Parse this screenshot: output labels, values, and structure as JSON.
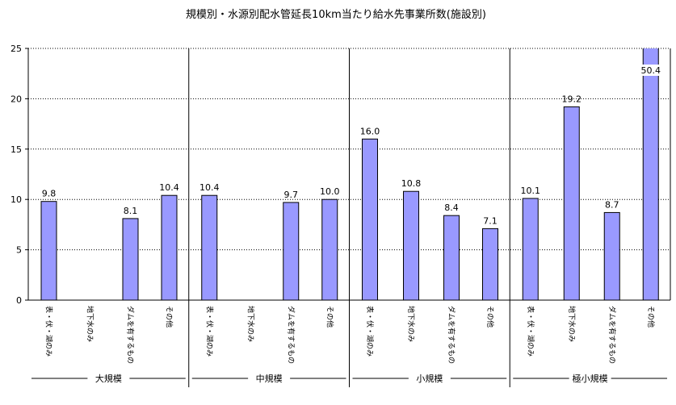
{
  "chart_data": {
    "type": "bar",
    "title": "規模別・水源別配水管延長10km当たり給水先事業所数(施設別)",
    "xlabel": "",
    "ylabel": "",
    "ylim": [
      0,
      25
    ],
    "yticks": [
      0,
      5,
      10,
      15,
      20,
      25
    ],
    "grid": true,
    "legend": "none",
    "colors": {
      "bar_fill": "#9999ff",
      "bar_stroke": "#000000",
      "grid": "#000000"
    },
    "groups": [
      {
        "label": "大規模",
        "categories": [
          "表・伏・湖のみ",
          "地下水のみ",
          "ダムを有するもの",
          "その他"
        ],
        "values": [
          9.8,
          null,
          8.1,
          10.4
        ],
        "value_labels": [
          "9.8",
          "",
          "8.1",
          "10.4"
        ]
      },
      {
        "label": "中規模",
        "categories": [
          "表・伏・湖のみ",
          "地下水のみ",
          "ダムを有するもの",
          "その他"
        ],
        "values": [
          10.4,
          null,
          9.7,
          10.0
        ],
        "value_labels": [
          "10.4",
          "",
          "9.7",
          "10.0"
        ]
      },
      {
        "label": "小規模",
        "categories": [
          "表・伏・湖のみ",
          "地下水のみ",
          "ダムを有するもの",
          "その他"
        ],
        "values": [
          16.0,
          10.8,
          8.4,
          7.1
        ],
        "value_labels": [
          "16.0",
          "10.8",
          "8.4",
          "7.1"
        ]
      },
      {
        "label": "極小規模",
        "categories": [
          "表・伏・湖のみ",
          "地下水のみ",
          "ダムを有するもの",
          "その他"
        ],
        "values": [
          10.1,
          19.2,
          8.7,
          50.4
        ],
        "value_labels": [
          "10.1",
          "19.2",
          "8.7",
          "50.4"
        ]
      }
    ]
  }
}
